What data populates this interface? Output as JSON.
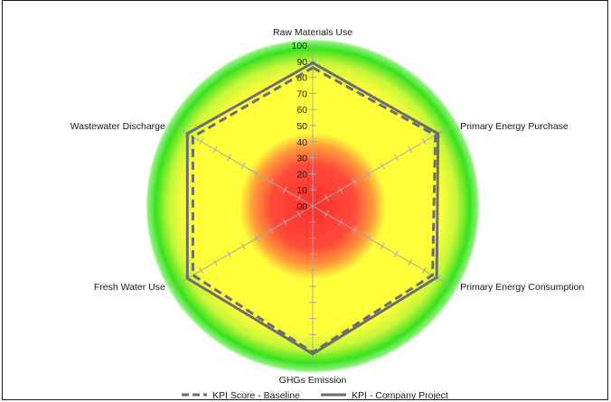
{
  "chart_data": {
    "type": "radar",
    "axes": [
      "Raw Materials Use",
      "Primary Energy Purchase",
      "Primary Energy Consumption",
      "GHGs Emission",
      "Fresh Water Use",
      "Wastewater Discharge"
    ],
    "tick_labels": [
      "00",
      "10",
      "20",
      "30",
      "40",
      "50",
      "60",
      "70",
      "80",
      "90",
      "100"
    ],
    "rlim": [
      0,
      100
    ],
    "series": [
      {
        "name": "KPI Score - Baseline",
        "style": "dashed",
        "color": "#6d6d6d",
        "values": [
          86,
          88,
          86,
          91,
          86,
          86
        ]
      },
      {
        "name": "KPI - Company Project",
        "style": "solid",
        "color": "#6d6d6d",
        "values": [
          89,
          90,
          89,
          92,
          90,
          90
        ]
      }
    ],
    "background_zones": [
      {
        "color": "#ff3b3b",
        "range": [
          0,
          35
        ]
      },
      {
        "color": "#ffff3c",
        "range": [
          35,
          95
        ]
      },
      {
        "color": "#35e01c",
        "range": [
          95,
          112
        ]
      }
    ],
    "grid_color": "#a8a8a8",
    "legend_position": "bottom"
  }
}
